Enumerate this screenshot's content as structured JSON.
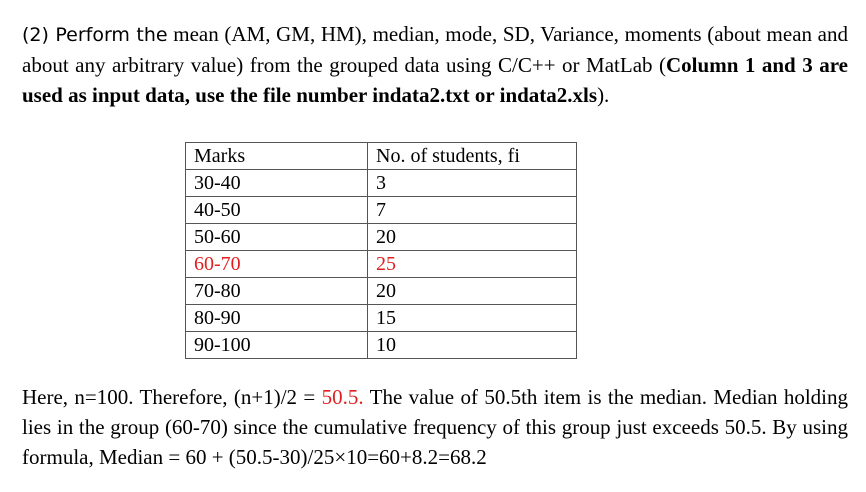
{
  "question": {
    "label": "(2) Perform the",
    "text_1": " mean (AM, GM, HM), median, mode, SD, Variance, moments (about mean and about any arbitrary value) from the grouped data using C/C++ or MatLab (",
    "bold_text": "Column 1 and 3 are used as input data, use the file number indata2.txt or indata2.xls",
    "text_end": ")."
  },
  "table": {
    "headers": [
      "Marks",
      "No. of students, fi"
    ],
    "rows": [
      {
        "marks": "30-40",
        "students": "3"
      },
      {
        "marks": "40-50",
        "students": "7"
      },
      {
        "marks": "50-60",
        "students": "20"
      },
      {
        "marks": "60-70",
        "students": "25",
        "highlight": true
      },
      {
        "marks": "70-80",
        "students": "20"
      },
      {
        "marks": "80-90",
        "students": "15"
      },
      {
        "marks": "90-100",
        "students": "10"
      }
    ],
    "highlight_color": "#e02020"
  },
  "explanation": {
    "text_1": "Here, n=100. Therefore, (n+1)/2 = ",
    "highlight": "50.5.",
    "text_2": " The value of 50.5th item is the median. Median holding lies in the group (60-70) since the cumulative frequency of this group just exceeds 50.5. By using formula, Median = 60 + (50.5-30)/25×10=60+8.2=68.2"
  }
}
